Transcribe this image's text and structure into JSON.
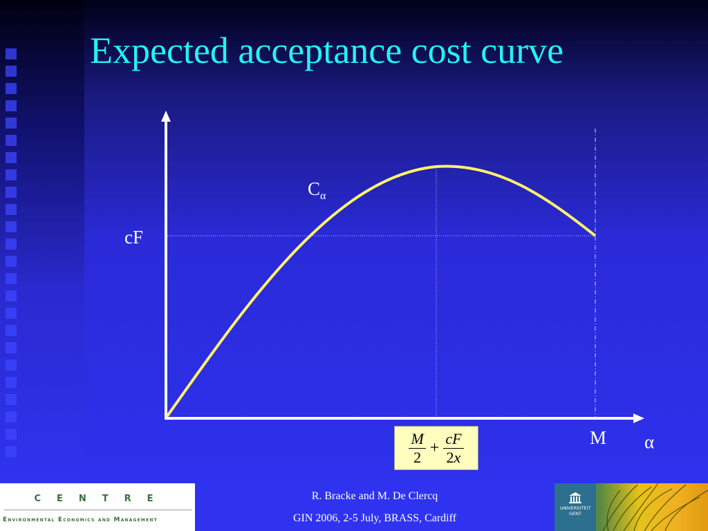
{
  "slide": {
    "title": "Expected acceptance cost curve"
  },
  "graph": {
    "curve_label_main": "C",
    "curve_label_sub": "α",
    "y_marker_label": "cF",
    "x_end_label": "M",
    "x_axis_symbol": "α",
    "curve_color": "#fff36a",
    "axis_color": "#ffffff"
  },
  "formula": {
    "term1_numerator": "M",
    "term1_denominator": "2",
    "operator": "+",
    "term2_numerator": "cF",
    "term2_denominator_coef": "2",
    "term2_denominator_var": "x"
  },
  "footer": {
    "centre_word": "CENTRE",
    "centre_subtitle": "Environmental Economics and Management",
    "authors": "R. Bracke and M. De Clercq",
    "event": "GIN 2006, 2-5 July, BRASS, Cardiff",
    "logo_line1": "UNIVERSITEIT",
    "logo_line2": "GENT"
  },
  "colors": {
    "title": "#23f3f3",
    "formula_background": "#fffebf",
    "background": "#2f33f0"
  }
}
